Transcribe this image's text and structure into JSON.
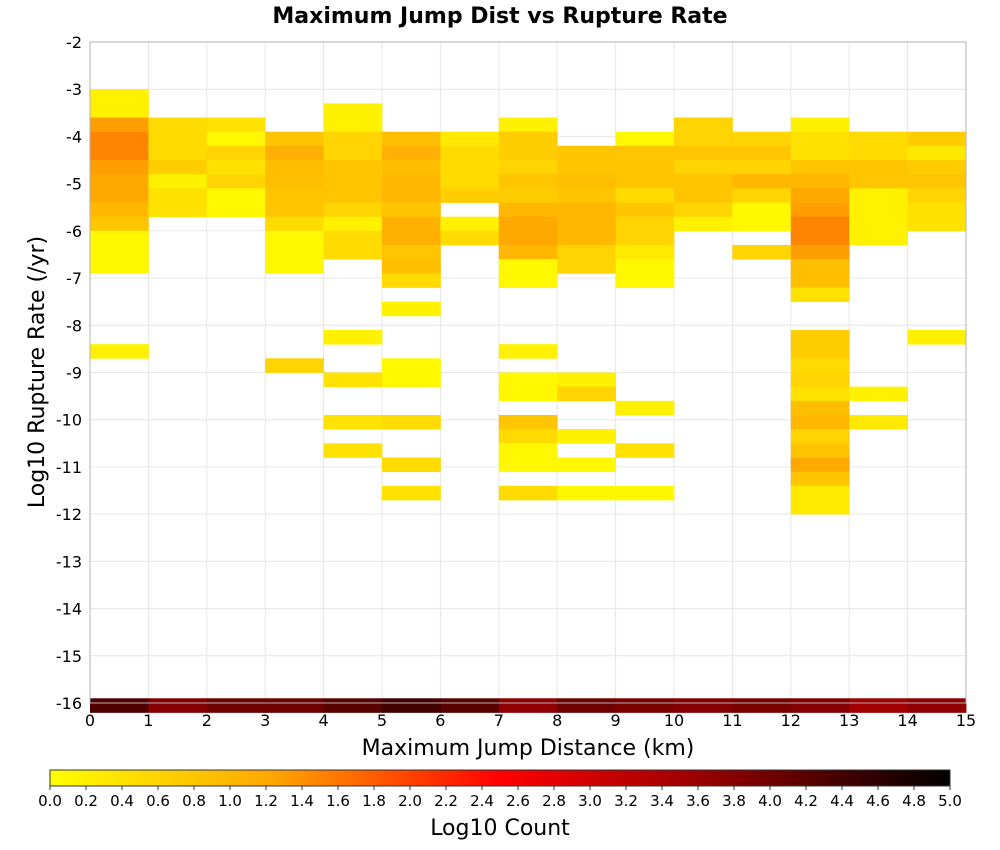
{
  "chart_data": {
    "type": "heatmap",
    "title": "Maximum Jump Dist vs Rupture Rate",
    "xlabel": "Maximum Jump Distance (km)",
    "ylabel": "Log10 Rupture Rate (/yr)",
    "xlim": [
      0,
      15
    ],
    "ylim": [
      -16,
      -2
    ],
    "x_ticks": [
      "0",
      "1",
      "2",
      "3",
      "4",
      "5",
      "6",
      "7",
      "8",
      "9",
      "10",
      "11",
      "12",
      "13",
      "14",
      "15"
    ],
    "y_ticks": [
      "-2",
      "-3",
      "-4",
      "-5",
      "-6",
      "-7",
      "-8",
      "-9",
      "-10",
      "-11",
      "-12",
      "-13",
      "-14",
      "-15",
      "-16"
    ],
    "grid": true,
    "bin_width_x": 1,
    "bin_height_y": 0.3,
    "colorbar": {
      "label": "Log10 Count",
      "range": [
        0,
        5
      ],
      "ticks": [
        "0.0",
        "0.2",
        "0.4",
        "0.6",
        "0.8",
        "1.0",
        "1.2",
        "1.4",
        "1.6",
        "1.8",
        "2.0",
        "2.2",
        "2.4",
        "2.6",
        "2.8",
        "3.0",
        "3.2",
        "3.4",
        "3.6",
        "3.8",
        "4.0",
        "4.2",
        "4.4",
        "4.6",
        "4.8",
        "5.0"
      ],
      "colors": [
        "#ffff00",
        "#ffa500",
        "#ff0000",
        "#8b0000",
        "#000000"
      ],
      "placement": "bottom"
    },
    "cells": [
      [
        0,
        -3.0,
        0.2
      ],
      [
        0,
        -3.3,
        0.2
      ],
      [
        0,
        -3.6,
        1.3
      ],
      [
        0,
        -3.9,
        1.5
      ],
      [
        0,
        -4.2,
        1.5
      ],
      [
        0,
        -4.5,
        1.3
      ],
      [
        0,
        -4.8,
        1.2
      ],
      [
        0,
        -5.1,
        1.2
      ],
      [
        0,
        -5.4,
        1.0
      ],
      [
        0,
        -5.7,
        0.8
      ],
      [
        0,
        -6.0,
        0.1
      ],
      [
        0,
        -6.3,
        0.1
      ],
      [
        0,
        -6.6,
        0.1
      ],
      [
        0,
        -8.4,
        0.2
      ],
      [
        1,
        -3.6,
        0.5
      ],
      [
        1,
        -3.9,
        0.5
      ],
      [
        1,
        -4.2,
        0.5
      ],
      [
        1,
        -4.5,
        0.7
      ],
      [
        1,
        -4.8,
        0.2
      ],
      [
        1,
        -5.1,
        0.4
      ],
      [
        1,
        -5.4,
        0.4
      ],
      [
        2,
        -3.6,
        0.4
      ],
      [
        2,
        -3.9,
        0.1
      ],
      [
        2,
        -4.2,
        0.6
      ],
      [
        2,
        -4.5,
        0.4
      ],
      [
        2,
        -4.8,
        0.6
      ],
      [
        2,
        -5.1,
        0.1
      ],
      [
        2,
        -5.4,
        0.1
      ],
      [
        3,
        -3.9,
        0.8
      ],
      [
        3,
        -4.2,
        1.1
      ],
      [
        3,
        -4.5,
        0.9
      ],
      [
        3,
        -4.8,
        0.9
      ],
      [
        3,
        -5.1,
        0.8
      ],
      [
        3,
        -5.4,
        0.8
      ],
      [
        3,
        -5.7,
        0.5
      ],
      [
        3,
        -6.0,
        0.1
      ],
      [
        3,
        -6.3,
        0.1
      ],
      [
        3,
        -6.6,
        0.1
      ],
      [
        3,
        -8.7,
        0.6
      ],
      [
        4,
        -3.3,
        0.2
      ],
      [
        4,
        -3.6,
        0.2
      ],
      [
        4,
        -3.9,
        0.6
      ],
      [
        4,
        -4.2,
        0.6
      ],
      [
        4,
        -4.5,
        0.8
      ],
      [
        4,
        -4.8,
        0.8
      ],
      [
        4,
        -5.1,
        0.8
      ],
      [
        4,
        -5.4,
        0.6
      ],
      [
        4,
        -5.7,
        0.2
      ],
      [
        4,
        -6.0,
        0.5
      ],
      [
        4,
        -6.3,
        0.5
      ],
      [
        4,
        -8.1,
        0.2
      ],
      [
        4,
        -9.0,
        0.4
      ],
      [
        4,
        -9.9,
        0.4
      ],
      [
        4,
        -10.5,
        0.4
      ],
      [
        5,
        -3.9,
        0.9
      ],
      [
        5,
        -4.2,
        1.1
      ],
      [
        5,
        -4.5,
        0.9
      ],
      [
        5,
        -4.8,
        1.0
      ],
      [
        5,
        -5.1,
        1.0
      ],
      [
        5,
        -5.4,
        0.8
      ],
      [
        5,
        -5.7,
        1.1
      ],
      [
        5,
        -6.0,
        1.1
      ],
      [
        5,
        -6.3,
        0.8
      ],
      [
        5,
        -6.6,
        0.9
      ],
      [
        5,
        -6.9,
        0.5
      ],
      [
        5,
        -7.5,
        0.2
      ],
      [
        5,
        -8.7,
        0.1
      ],
      [
        5,
        -9.0,
        0.1
      ],
      [
        5,
        -9.9,
        0.5
      ],
      [
        5,
        -10.8,
        0.5
      ],
      [
        5,
        -11.4,
        0.4
      ],
      [
        6,
        -3.9,
        0.3
      ],
      [
        6,
        -4.2,
        0.5
      ],
      [
        6,
        -4.5,
        0.5
      ],
      [
        6,
        -4.8,
        0.5
      ],
      [
        6,
        -5.1,
        0.7
      ],
      [
        6,
        -5.7,
        0.2
      ],
      [
        6,
        -6.0,
        0.5
      ],
      [
        7,
        -3.6,
        0.2
      ],
      [
        7,
        -3.9,
        0.7
      ],
      [
        7,
        -4.2,
        0.7
      ],
      [
        7,
        -4.5,
        0.6
      ],
      [
        7,
        -4.8,
        0.8
      ],
      [
        7,
        -5.1,
        0.7
      ],
      [
        7,
        -5.4,
        1.0
      ],
      [
        7,
        -5.7,
        1.2
      ],
      [
        7,
        -6.0,
        1.2
      ],
      [
        7,
        -6.3,
        1.0
      ],
      [
        7,
        -6.6,
        0.1
      ],
      [
        7,
        -6.9,
        0.1
      ],
      [
        7,
        -8.4,
        0.2
      ],
      [
        7,
        -9.0,
        0.1
      ],
      [
        7,
        -9.3,
        0.1
      ],
      [
        7,
        -9.9,
        0.8
      ],
      [
        7,
        -10.2,
        0.5
      ],
      [
        7,
        -10.5,
        0.1
      ],
      [
        7,
        -10.8,
        0.1
      ],
      [
        7,
        -11.4,
        0.5
      ],
      [
        8,
        -4.2,
        0.8
      ],
      [
        8,
        -4.5,
        0.8
      ],
      [
        8,
        -4.8,
        0.9
      ],
      [
        8,
        -5.1,
        0.8
      ],
      [
        8,
        -5.4,
        1.0
      ],
      [
        8,
        -5.7,
        1.0
      ],
      [
        8,
        -6.0,
        1.0
      ],
      [
        8,
        -6.3,
        0.6
      ],
      [
        8,
        -6.6,
        0.6
      ],
      [
        8,
        -9.0,
        0.2
      ],
      [
        8,
        -9.3,
        0.6
      ],
      [
        8,
        -10.2,
        0.2
      ],
      [
        8,
        -10.8,
        0.1
      ],
      [
        8,
        -11.4,
        0.1
      ],
      [
        9,
        -3.9,
        0.1
      ],
      [
        9,
        -4.2,
        0.8
      ],
      [
        9,
        -4.5,
        0.8
      ],
      [
        9,
        -4.8,
        0.8
      ],
      [
        9,
        -5.1,
        0.5
      ],
      [
        9,
        -5.4,
        0.8
      ],
      [
        9,
        -5.7,
        0.6
      ],
      [
        9,
        -6.0,
        0.6
      ],
      [
        9,
        -6.3,
        0.3
      ],
      [
        9,
        -6.6,
        0.1
      ],
      [
        9,
        -6.9,
        0.1
      ],
      [
        9,
        -9.6,
        0.2
      ],
      [
        9,
        -10.5,
        0.4
      ],
      [
        9,
        -11.4,
        0.1
      ],
      [
        10,
        -3.6,
        0.6
      ],
      [
        10,
        -3.9,
        0.6
      ],
      [
        10,
        -4.2,
        0.8
      ],
      [
        10,
        -4.5,
        0.6
      ],
      [
        10,
        -4.8,
        0.8
      ],
      [
        10,
        -5.1,
        0.8
      ],
      [
        10,
        -5.4,
        0.6
      ],
      [
        10,
        -5.7,
        0.2
      ],
      [
        11,
        -3.9,
        0.6
      ],
      [
        11,
        -4.2,
        0.8
      ],
      [
        11,
        -4.5,
        0.6
      ],
      [
        11,
        -4.8,
        1.0
      ],
      [
        11,
        -5.1,
        0.6
      ],
      [
        11,
        -5.4,
        0.1
      ],
      [
        11,
        -5.7,
        0.1
      ],
      [
        11,
        -6.3,
        0.6
      ],
      [
        12,
        -3.6,
        0.2
      ],
      [
        12,
        -3.9,
        0.4
      ],
      [
        12,
        -4.2,
        0.4
      ],
      [
        12,
        -4.5,
        0.8
      ],
      [
        12,
        -4.8,
        1.0
      ],
      [
        12,
        -5.1,
        1.2
      ],
      [
        12,
        -5.4,
        1.3
      ],
      [
        12,
        -5.7,
        1.5
      ],
      [
        12,
        -6.0,
        1.5
      ],
      [
        12,
        -6.3,
        1.3
      ],
      [
        12,
        -6.6,
        0.9
      ],
      [
        12,
        -6.9,
        0.9
      ],
      [
        12,
        -7.2,
        0.4
      ],
      [
        12,
        -8.1,
        0.7
      ],
      [
        12,
        -8.4,
        0.7
      ],
      [
        12,
        -8.7,
        0.5
      ],
      [
        12,
        -9.0,
        0.6
      ],
      [
        12,
        -9.3,
        0.4
      ],
      [
        12,
        -9.6,
        0.9
      ],
      [
        12,
        -9.9,
        1.0
      ],
      [
        12,
        -10.2,
        0.6
      ],
      [
        12,
        -10.5,
        0.8
      ],
      [
        12,
        -10.8,
        1.2
      ],
      [
        12,
        -11.1,
        0.8
      ],
      [
        12,
        -11.4,
        0.3
      ],
      [
        12,
        -11.7,
        0.3
      ],
      [
        13,
        -3.9,
        0.5
      ],
      [
        13,
        -4.2,
        0.5
      ],
      [
        13,
        -4.5,
        0.8
      ],
      [
        13,
        -4.8,
        0.8
      ],
      [
        13,
        -5.1,
        0.2
      ],
      [
        13,
        -5.4,
        0.2
      ],
      [
        13,
        -5.7,
        0.2
      ],
      [
        13,
        -6.0,
        0.2
      ],
      [
        13,
        -9.3,
        0.2
      ],
      [
        13,
        -9.9,
        0.3
      ],
      [
        14,
        -3.9,
        0.7
      ],
      [
        14,
        -4.2,
        0.3
      ],
      [
        14,
        -4.5,
        0.7
      ],
      [
        14,
        -4.8,
        0.8
      ],
      [
        14,
        -5.1,
        0.6
      ],
      [
        14,
        -5.4,
        0.4
      ],
      [
        14,
        -5.7,
        0.4
      ],
      [
        14,
        -8.1,
        0.2
      ],
      [
        0,
        -15.9,
        4.3
      ],
      [
        1,
        -15.9,
        3.8
      ],
      [
        2,
        -15.9,
        4.0
      ],
      [
        3,
        -15.9,
        4.0
      ],
      [
        4,
        -15.9,
        4.2
      ],
      [
        5,
        -15.9,
        4.4
      ],
      [
        6,
        -15.9,
        4.2
      ],
      [
        7,
        -15.9,
        3.7
      ],
      [
        8,
        -15.9,
        4.0
      ],
      [
        9,
        -15.9,
        3.9
      ],
      [
        10,
        -15.9,
        3.8
      ],
      [
        11,
        -15.9,
        3.9
      ],
      [
        12,
        -15.9,
        3.8
      ],
      [
        13,
        -15.9,
        3.5
      ],
      [
        14,
        -15.9,
        3.7
      ]
    ]
  }
}
